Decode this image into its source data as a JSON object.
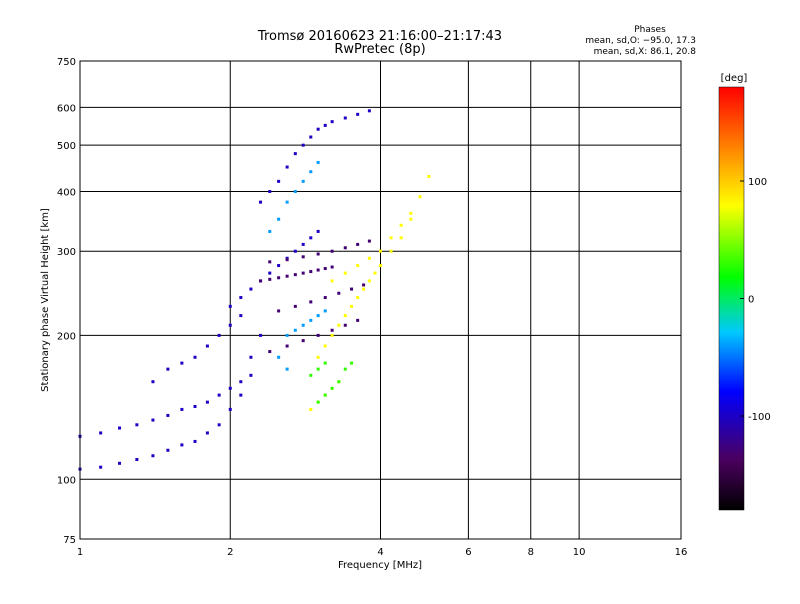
{
  "header": {
    "title_line1": "Tromsø 20160623 21:16:00–21:17:43",
    "title_line2": "RwPretec (8p)"
  },
  "phase_stats": {
    "heading": "Phases",
    "line_o": "mean, sd,O: −95.0, 17.3",
    "line_x": "mean, sd,X: 86.1, 20.8"
  },
  "colorbar": {
    "label": "[deg]",
    "range": [
      -180,
      180
    ],
    "ticks": [
      "100",
      "0",
      "-100"
    ],
    "tick_values": [
      100,
      0,
      -100
    ]
  },
  "chart_data": {
    "type": "scatter",
    "xlabel": "Frequency [MHz]",
    "ylabel": "Stationary phase Virtual Height [km]",
    "x_scale": "log",
    "y_scale": "log",
    "xlim": [
      1,
      16
    ],
    "ylim": [
      75,
      750
    ],
    "x_ticks": [
      "1",
      "2",
      "4",
      "6",
      "8",
      "10",
      "16"
    ],
    "x_tick_values": [
      1,
      2,
      4,
      6,
      8,
      10,
      16
    ],
    "y_ticks": [
      "75",
      "100",
      "200",
      "300",
      "400",
      "500",
      "600",
      "750"
    ],
    "y_tick_values": [
      75,
      100,
      200,
      300,
      400,
      500,
      600,
      750
    ],
    "grid": true,
    "series": [
      {
        "phase_deg": -100,
        "x": [
          1.0,
          1.1,
          1.2,
          1.3,
          1.4,
          1.5,
          1.6,
          1.7,
          1.8,
          1.9,
          2.0,
          2.1,
          2.2,
          1.0,
          1.1,
          1.2,
          1.3,
          1.4,
          1.5,
          1.6,
          1.7,
          1.8,
          1.9,
          2.0,
          2.1,
          2.2,
          2.3,
          1.4,
          1.5,
          1.6,
          1.7,
          1.8,
          1.9,
          2.0,
          2.1,
          2.0,
          2.1,
          2.2,
          2.3,
          2.4,
          2.5,
          2.6,
          2.7,
          2.8,
          2.9,
          3.0,
          2.3,
          2.4,
          2.5,
          2.6,
          2.7,
          2.8,
          2.9,
          3.0,
          3.1,
          3.2,
          3.4,
          3.6,
          3.8
        ],
        "y": [
          105,
          106,
          108,
          110,
          112,
          115,
          118,
          120,
          125,
          130,
          140,
          150,
          165,
          123,
          125,
          128,
          130,
          133,
          136,
          140,
          142,
          145,
          150,
          155,
          160,
          180,
          200,
          160,
          170,
          175,
          180,
          190,
          200,
          210,
          220,
          230,
          240,
          250,
          260,
          270,
          280,
          290,
          300,
          310,
          320,
          330,
          380,
          400,
          420,
          450,
          480,
          500,
          520,
          540,
          550,
          560,
          570,
          580,
          590
        ]
      },
      {
        "phase_deg": -130,
        "x": [
          2.3,
          2.4,
          2.5,
          2.6,
          2.7,
          2.8,
          2.9,
          3.0,
          3.1,
          3.2,
          2.4,
          2.6,
          2.8,
          3.0,
          3.2,
          3.4,
          3.6,
          3.8,
          2.4,
          2.6,
          2.8,
          3.0,
          3.2,
          3.4,
          3.6,
          2.5,
          2.7,
          2.9,
          3.1,
          3.3,
          3.5,
          3.7
        ],
        "y": [
          260,
          262,
          264,
          266,
          268,
          270,
          272,
          274,
          276,
          278,
          285,
          288,
          292,
          296,
          300,
          305,
          310,
          315,
          185,
          190,
          195,
          200,
          205,
          210,
          215,
          225,
          230,
          235,
          240,
          245,
          250,
          255
        ]
      },
      {
        "phase_deg": -40,
        "x": [
          2.4,
          2.5,
          2.6,
          2.7,
          2.8,
          2.9,
          3.0,
          2.6,
          2.7,
          2.8,
          2.9,
          3.0,
          3.1,
          2.5,
          2.6
        ],
        "y": [
          330,
          350,
          380,
          400,
          420,
          440,
          460,
          200,
          205,
          210,
          215,
          220,
          225,
          180,
          170
        ]
      },
      {
        "phase_deg": 80,
        "x": [
          3.0,
          3.1,
          3.2,
          3.3,
          3.4,
          3.5,
          3.6,
          3.7,
          3.8,
          3.9,
          4.0,
          4.2,
          4.4,
          4.6,
          4.8,
          5.0,
          3.2,
          3.4,
          3.6,
          3.8,
          4.0,
          4.2,
          4.4,
          4.6,
          2.9,
          3.0,
          3.1,
          3.2,
          3.3
        ],
        "y": [
          180,
          190,
          200,
          210,
          220,
          230,
          240,
          250,
          260,
          270,
          280,
          300,
          320,
          350,
          390,
          430,
          260,
          270,
          280,
          290,
          300,
          320,
          340,
          360,
          140,
          145,
          150,
          155,
          160
        ]
      },
      {
        "phase_deg": 30,
        "x": [
          3.0,
          3.1,
          3.2,
          3.3,
          3.4,
          3.5,
          2.9,
          3.0,
          3.1
        ],
        "y": [
          145,
          150,
          155,
          160,
          170,
          175,
          165,
          170,
          175
        ]
      }
    ]
  }
}
